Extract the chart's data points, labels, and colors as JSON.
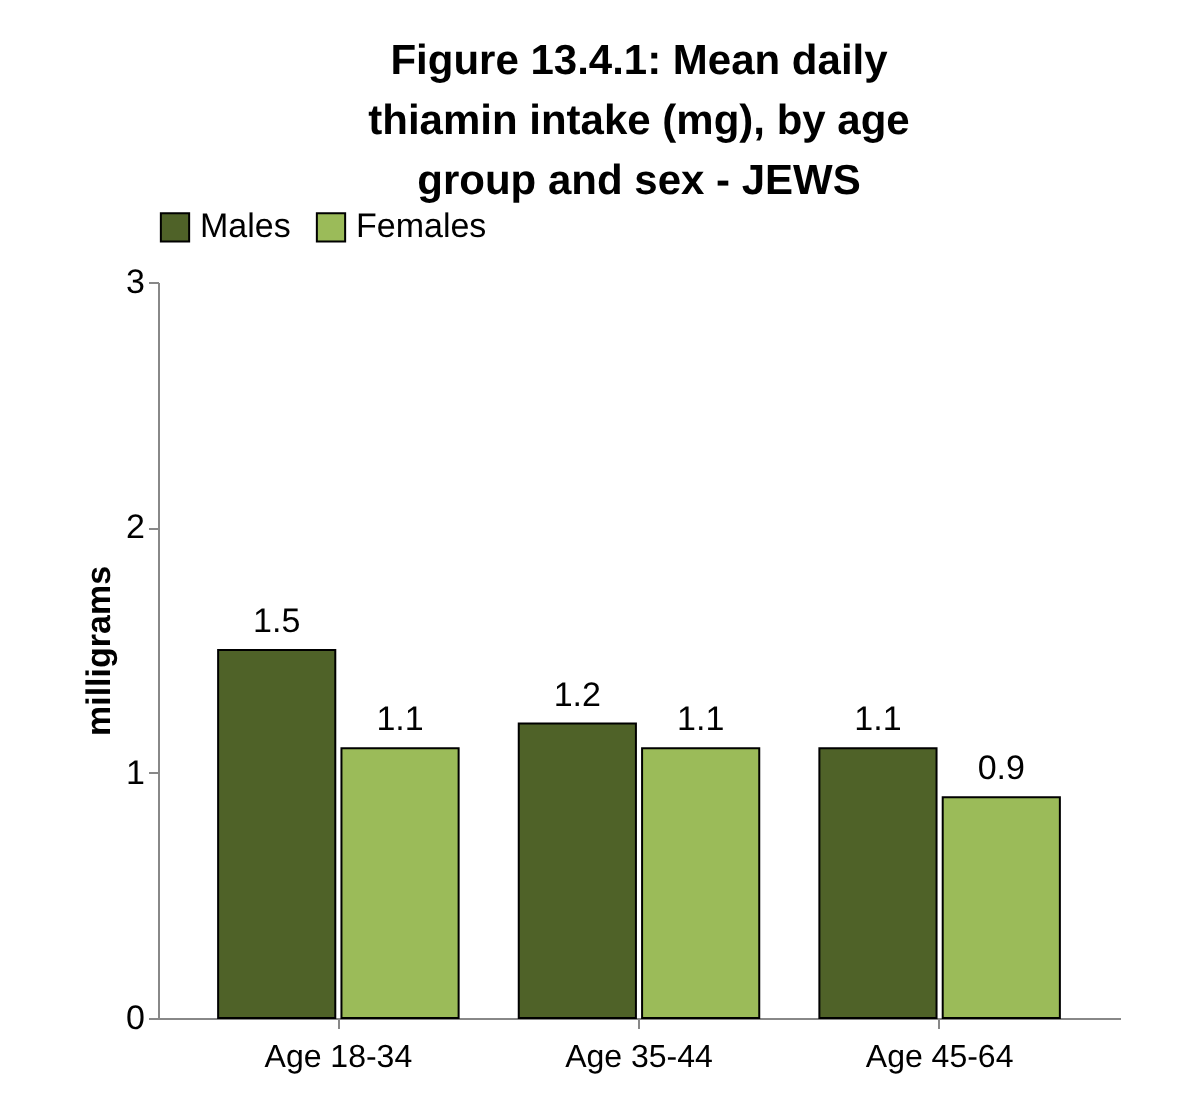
{
  "chart_data": {
    "type": "bar",
    "title": "Figure 13.4.1: Mean daily thiamin intake (mg), by age group and sex - JEWS",
    "ylabel": "milligrams",
    "categories": [
      "Age 18-34",
      "Age 35-44",
      "Age 45-64"
    ],
    "series": [
      {
        "name": "Males",
        "color": "#4f6228",
        "values": [
          1.5,
          1.2,
          1.1
        ]
      },
      {
        "name": "Females",
        "color": "#9bbb59",
        "values": [
          1.1,
          1.1,
          0.9
        ]
      }
    ],
    "ylim": [
      0,
      3
    ],
    "yticks": [
      0,
      1,
      2,
      3
    ],
    "grid": false,
    "legend": "top",
    "data_labels": true
  }
}
